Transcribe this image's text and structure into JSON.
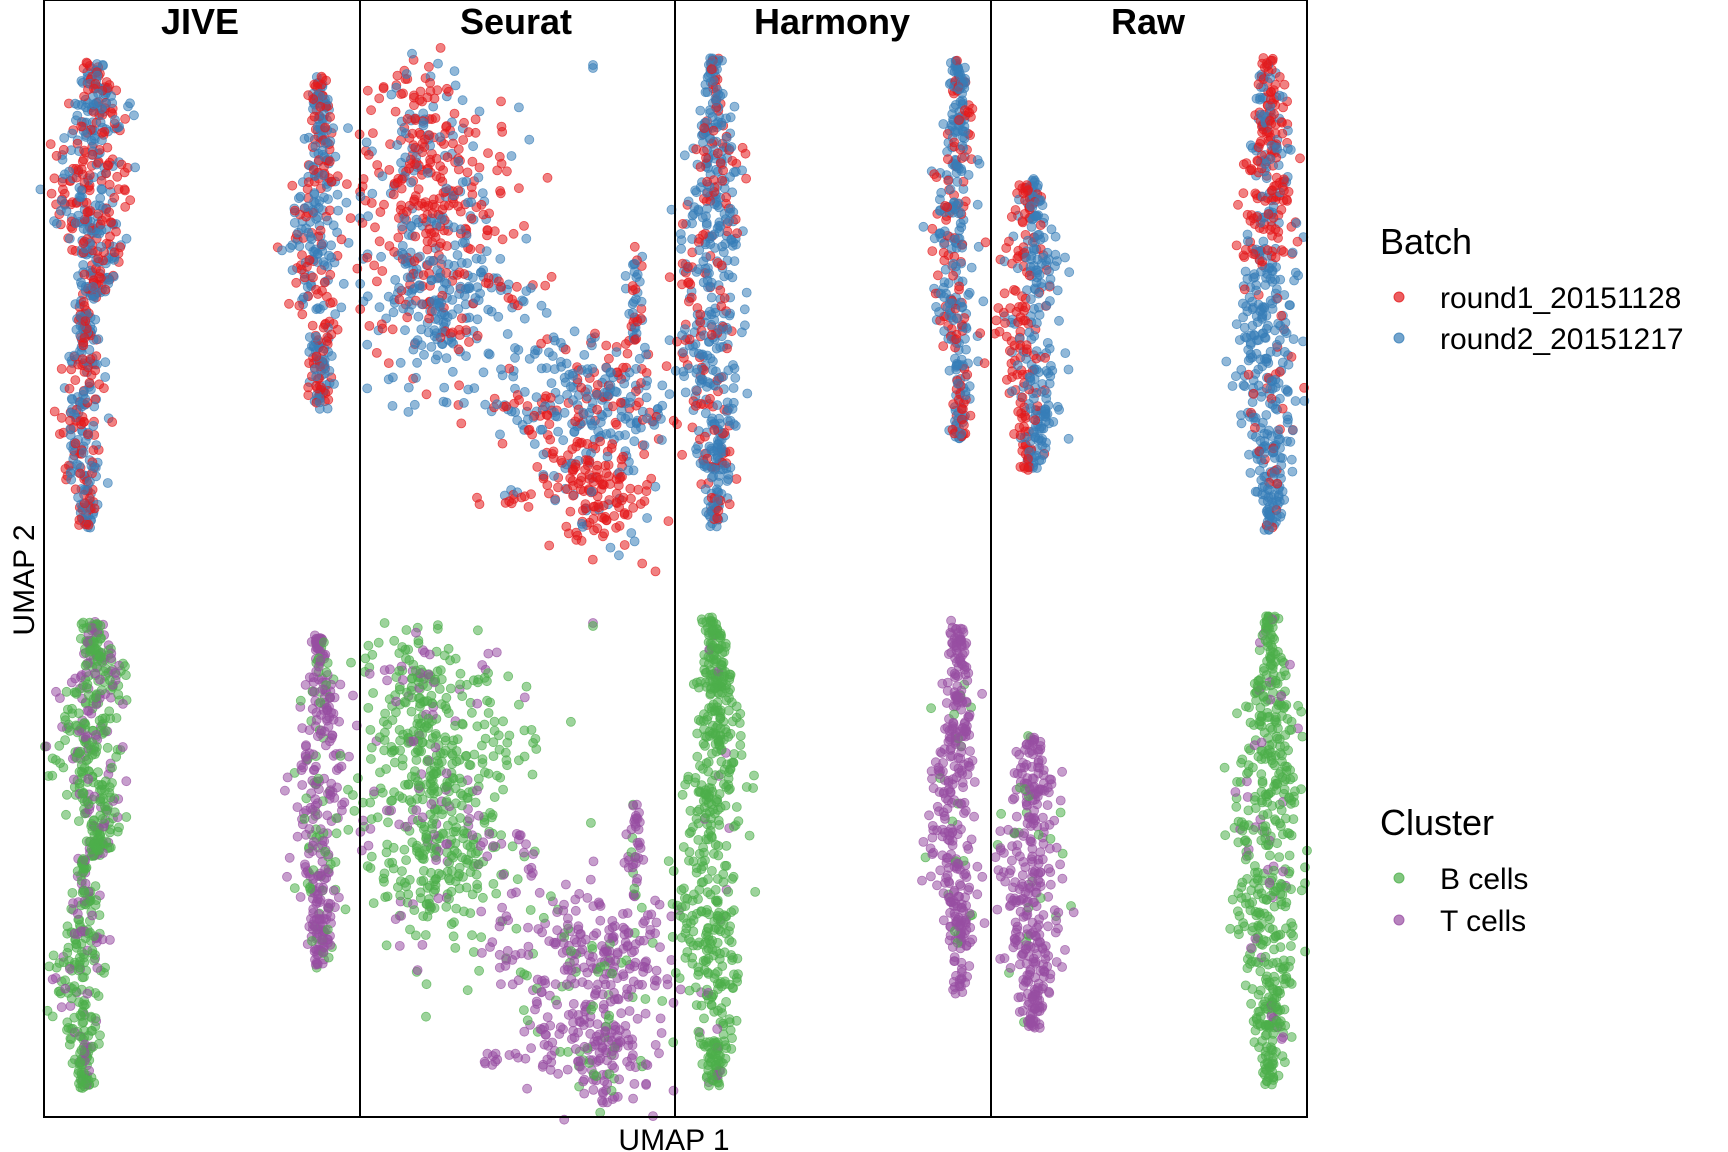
{
  "chart_data": {
    "type": "scatter",
    "facets": [
      "JIVE",
      "Seurat",
      "Harmony",
      "Raw"
    ],
    "xlabel": "UMAP 1",
    "ylabel": "UMAP 2",
    "rows": [
      "Batch",
      "Cluster"
    ],
    "legends": [
      {
        "title": "Batch",
        "entries": [
          {
            "name": "round1_20151128",
            "color": "#E41A1C"
          },
          {
            "name": "round2_20151217",
            "color": "#377EB8"
          }
        ]
      },
      {
        "title": "Cluster",
        "entries": [
          {
            "name": "B cells",
            "color": "#4DAF4A"
          },
          {
            "name": "T cells",
            "color": "#984EA3"
          }
        ]
      }
    ],
    "grid": false,
    "legend_position": "right",
    "point_alpha": 0.6
  }
}
